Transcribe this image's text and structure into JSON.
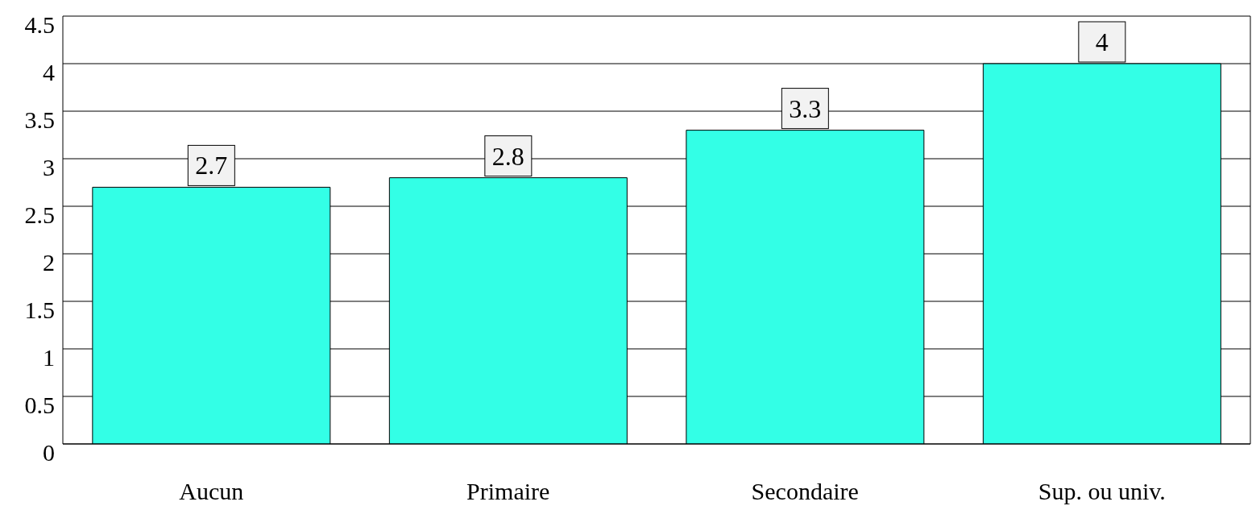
{
  "chart_data": {
    "type": "bar",
    "categories": [
      "Aucun",
      "Primaire",
      "Secondaire",
      "Sup. ou univ."
    ],
    "values": [
      2.7,
      2.8,
      3.3,
      4
    ],
    "color": "#33ffe6",
    "ylim": [
      0,
      4.5
    ],
    "yticks": [
      0,
      0.5,
      1,
      1.5,
      2,
      2.5,
      3,
      3.5,
      4,
      4.5
    ],
    "grid": "y",
    "data_labels": true
  }
}
